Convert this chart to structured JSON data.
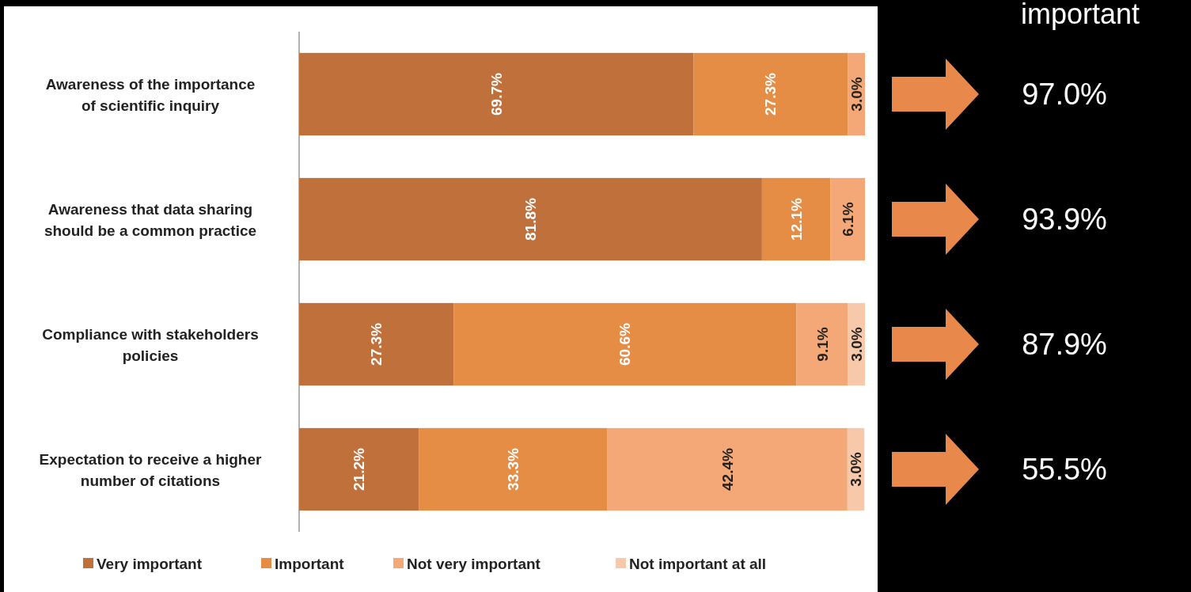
{
  "chart_data": {
    "type": "bar",
    "orientation": "horizontal",
    "stacked": true,
    "legend": "bottom",
    "tick_labels": "y",
    "xlim": [
      0,
      100
    ],
    "categories": [
      "Awareness of the importance\nof scientific inquiry",
      "Awareness that data sharing\nshould be a common practice",
      "Compliance with stakeholders\npolicies",
      "Expectation to receive a higher\nnumber of citations"
    ],
    "series": [
      {
        "name": "Very important",
        "color": "#c0703a",
        "values": [
          69.7,
          81.8,
          27.3,
          21.2
        ],
        "value_labels": [
          "69.7%",
          "81.8%",
          "27.3%",
          "21.2%"
        ]
      },
      {
        "name": "Important",
        "color": "#e58c45",
        "values": [
          27.3,
          12.1,
          60.6,
          33.3
        ],
        "value_labels": [
          "27.3%",
          "12.1%",
          "60.6%",
          "33.3%"
        ]
      },
      {
        "name": "Not very important",
        "color": "#f4a877",
        "values": [
          3.0,
          6.1,
          9.1,
          42.4
        ],
        "value_labels": [
          "3.0%",
          "6.1%",
          "9.1%",
          "42.4%"
        ]
      },
      {
        "name": "Not important at all",
        "color": "#f7c8aa",
        "values": [
          null,
          null,
          3.0,
          3.0
        ],
        "value_labels": [
          null,
          null,
          "3.0%",
          "3.0%"
        ]
      }
    ],
    "annotations": [
      "important",
      "97.0%",
      "93.9%",
      "87.9%",
      "55.5%"
    ]
  }
}
